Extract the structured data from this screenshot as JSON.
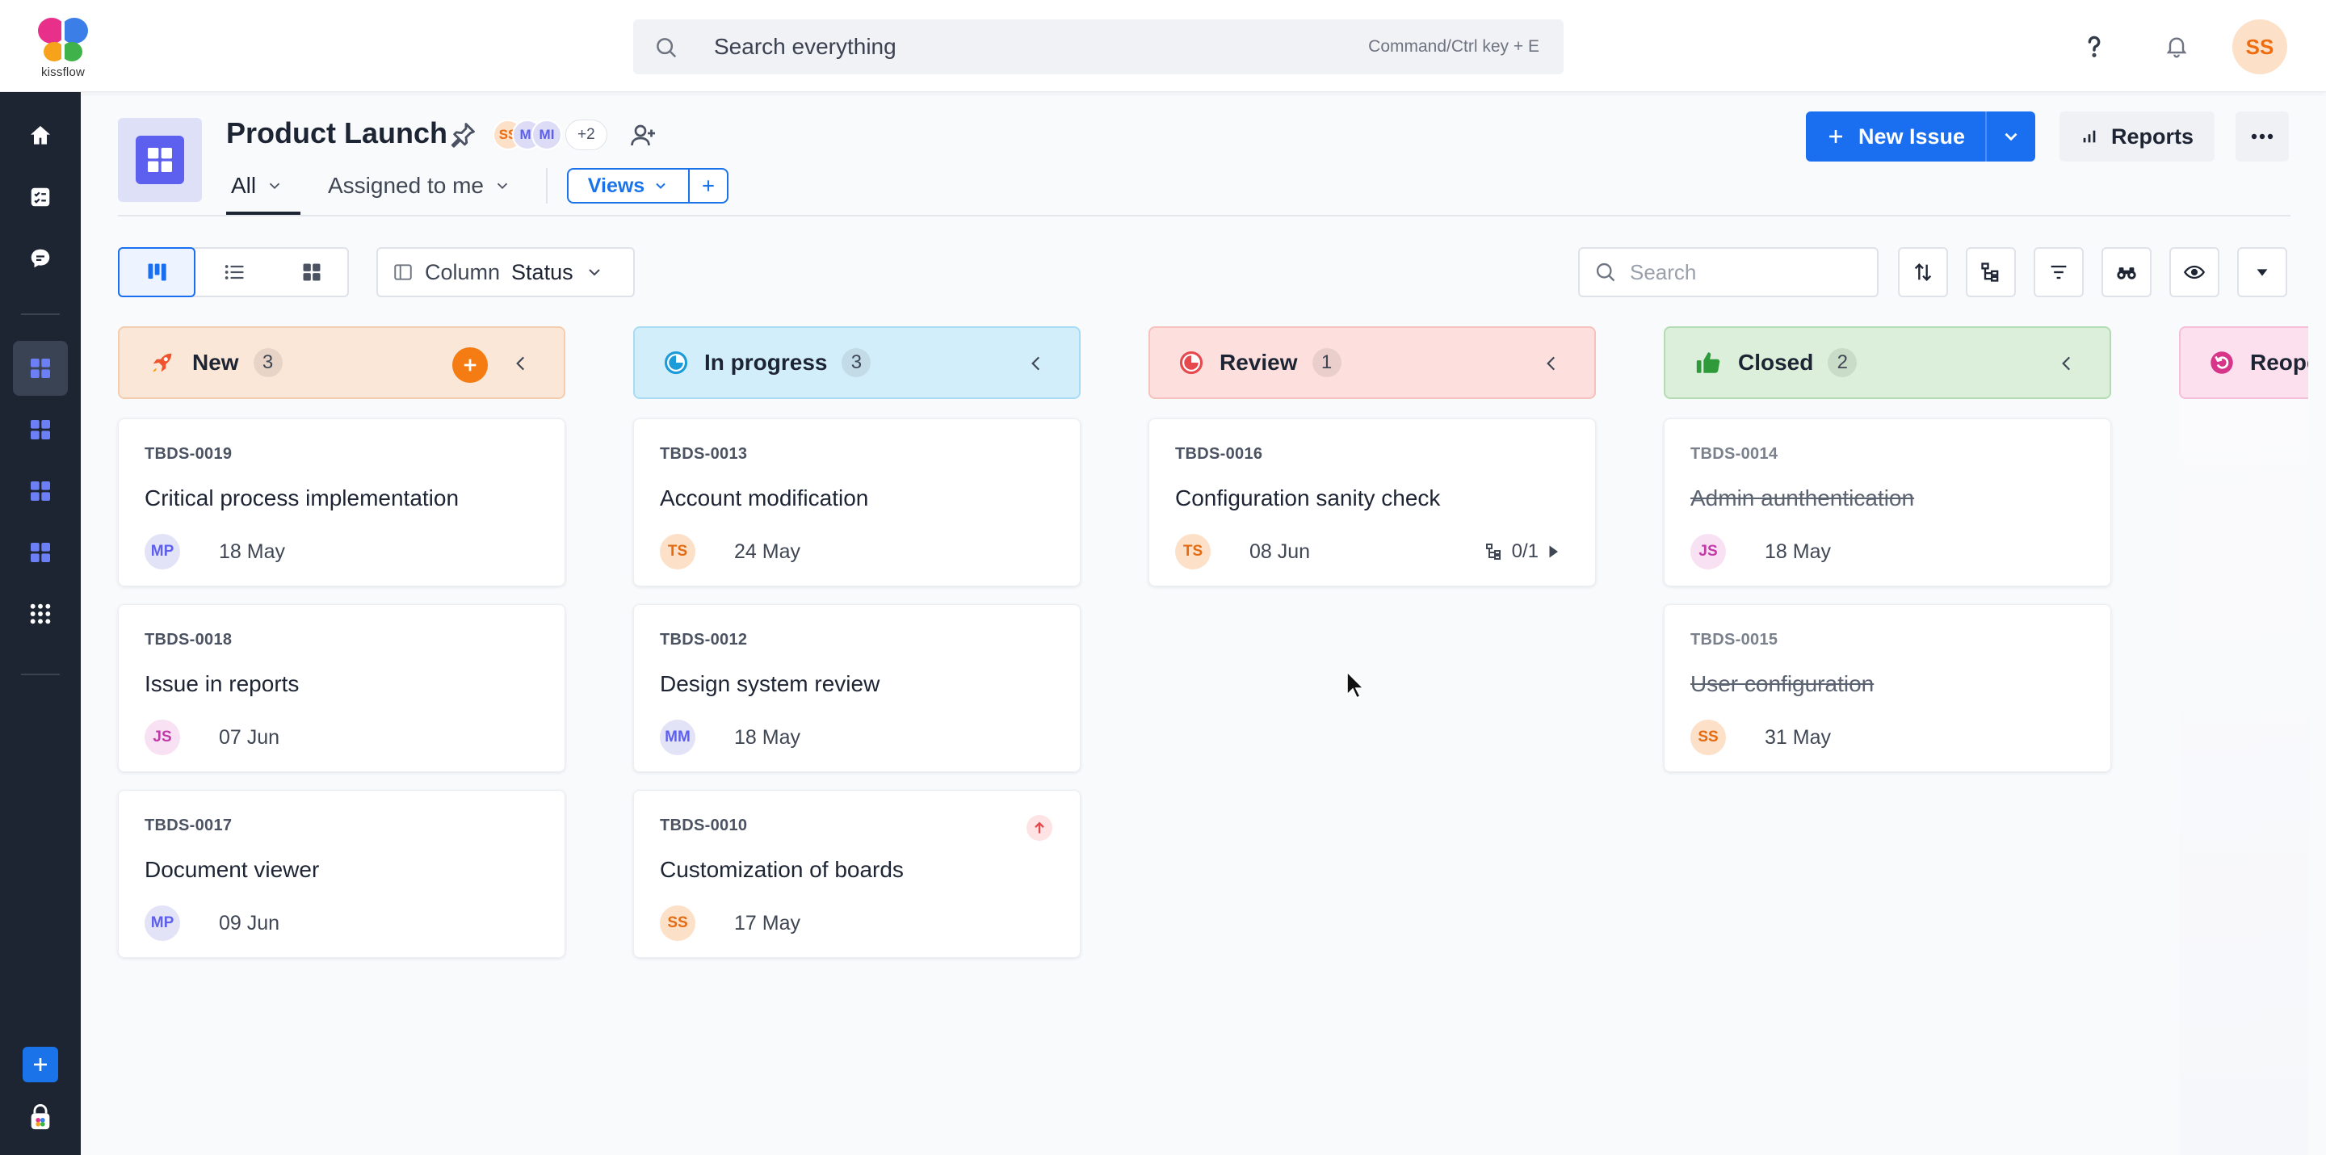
{
  "brand": {
    "logo_text": "kissflow"
  },
  "topbar": {
    "search_placeholder": "Search everything",
    "search_shortcut": "Command/Ctrl key + E",
    "help_icon": "question-icon",
    "notification_icon": "bell-icon",
    "user_initials": "SS"
  },
  "rail": {
    "items": [
      "home-icon",
      "tasks-icon",
      "chat-icon",
      "board-icon",
      "board-icon",
      "board-icon",
      "board-icon",
      "apps-grid-icon"
    ],
    "active_index": 3
  },
  "header": {
    "title": "Product Launch",
    "members": [
      {
        "initials": "SS",
        "bg": "#fde0c8",
        "fg": "#ef6c0f"
      },
      {
        "initials": "MI",
        "bg": "#dcdcf7",
        "fg": "#5d5fef"
      },
      {
        "initials": "MI",
        "bg": "#dcdcf7",
        "fg": "#5d5fef"
      }
    ],
    "members_more": "+2",
    "tabs": [
      {
        "label": "All"
      },
      {
        "label": "Assigned to me"
      }
    ],
    "views_label": "Views",
    "new_issue_label": "New Issue",
    "reports_label": "Reports"
  },
  "toolbar": {
    "column_label": "Column",
    "column_value": "Status",
    "search_placeholder": "Search"
  },
  "columns": [
    {
      "name": "New",
      "count": "3",
      "bg": "#fbe7d8",
      "border": "#f4cdae",
      "cards": [
        {
          "id": "TBDS-0019",
          "title": "Critical process implementation",
          "initials": "MP",
          "date": "18 May"
        },
        {
          "id": "TBDS-0018",
          "title": "Issue in reports",
          "initials": "JS",
          "date": "07 Jun"
        },
        {
          "id": "TBDS-0017",
          "title": "Document viewer",
          "initials": "MP",
          "date": "09 Jun"
        }
      ]
    },
    {
      "name": "In progress",
      "count": "3",
      "bg": "#d3eefb",
      "border": "#a9dcf4",
      "cards": [
        {
          "id": "TBDS-0013",
          "title": "Account modification",
          "initials": "TS",
          "date": "24 May"
        },
        {
          "id": "TBDS-0012",
          "title": "Design system review",
          "initials": "MM",
          "date": "18 May"
        },
        {
          "id": "TBDS-0010",
          "title": "Customization of boards",
          "initials": "SS",
          "date": "17 May"
        }
      ]
    },
    {
      "name": "Review",
      "count": "1",
      "bg": "#fde0de",
      "border": "#f7c1bd",
      "cards": [
        {
          "id": "TBDS-0016",
          "title": "Configuration sanity check",
          "initials": "TS",
          "date": "08 Jun",
          "subtasks": "0/1"
        }
      ]
    },
    {
      "name": "Closed",
      "count": "2",
      "bg": "#dbefda",
      "border": "#b4dcb2",
      "cards": [
        {
          "id": "TBDS-0014",
          "title": "Admin aunthentication",
          "initials": "JS",
          "date": "18 May"
        },
        {
          "id": "TBDS-0015",
          "title": "User configuration",
          "initials": "SS",
          "date": "31 May"
        }
      ]
    },
    {
      "name": "Reopened",
      "bg": "#fde0ee",
      "border": "#f6bfd9"
    }
  ],
  "avatar_colors": {
    "MP": {
      "bg": "#e3e3f8",
      "fg": "#5d5fef"
    },
    "JS": {
      "bg": "#f8e1f3",
      "fg": "#c23aa8"
    },
    "TS": {
      "bg": "#fde0c8",
      "fg": "#e56b12"
    },
    "MM": {
      "bg": "#e3e3f8",
      "fg": "#5d5fef"
    },
    "SS": {
      "bg": "#fde0c8",
      "fg": "#e56b12"
    }
  }
}
